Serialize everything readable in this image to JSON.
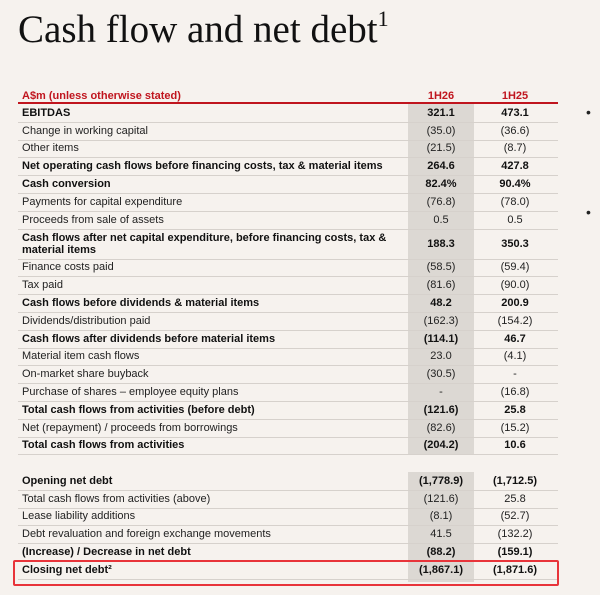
{
  "header": {
    "title": "Cash flow and net debt",
    "title_superscript": "1"
  },
  "table": {
    "columns": [
      "A$m (unless otherwise stated)",
      "1H26",
      "1H25"
    ],
    "sections": [
      {
        "rows": [
          {
            "label": "EBITDAS",
            "values": [
              "321.1",
              "473.1"
            ],
            "bold": true
          },
          {
            "label": "Change in working capital",
            "values": [
              "(35.0)",
              "(36.6)"
            ]
          },
          {
            "label": "Other items",
            "values": [
              "(21.5)",
              "(8.7)"
            ]
          },
          {
            "label": "Net operating cash flows before financing costs, tax & material items",
            "values": [
              "264.6",
              "427.8"
            ],
            "bold": true
          },
          {
            "label": "Cash conversion",
            "values": [
              "82.4%",
              "90.4%"
            ],
            "bold": true
          },
          {
            "label": "Payments for capital expenditure",
            "values": [
              "(76.8)",
              "(78.0)"
            ]
          },
          {
            "label": "Proceeds from sale of assets",
            "values": [
              "0.5",
              "0.5"
            ]
          },
          {
            "label": "Cash flows after net capital expenditure, before financing costs, tax & material items",
            "values": [
              "188.3",
              "350.3"
            ],
            "bold": true
          },
          {
            "label": "Finance costs paid",
            "values": [
              "(58.5)",
              "(59.4)"
            ]
          },
          {
            "label": "Tax paid",
            "values": [
              "(81.6)",
              "(90.0)"
            ]
          },
          {
            "label": "Cash flows before dividends & material items",
            "values": [
              "48.2",
              "200.9"
            ],
            "bold": true
          },
          {
            "label": "Dividends/distribution paid",
            "values": [
              "(162.3)",
              "(154.2)"
            ]
          },
          {
            "label": "Cash flows after dividends before material items",
            "values": [
              "(114.1)",
              "46.7"
            ],
            "bold": true
          },
          {
            "label": "Material item cash flows",
            "values": [
              "23.0",
              "(4.1)"
            ]
          },
          {
            "label": "On-market share buyback",
            "values": [
              "(30.5)",
              "-"
            ]
          },
          {
            "label": "Purchase of shares – employee equity plans",
            "values": [
              "-",
              "(16.8)"
            ]
          },
          {
            "label": "Total cash flows from activities (before debt)",
            "values": [
              "(121.6)",
              "25.8"
            ],
            "bold": true
          },
          {
            "label": "Net (repayment) / proceeds from borrowings",
            "values": [
              "(82.6)",
              "(15.2)"
            ]
          },
          {
            "label": "Total cash flows from activities",
            "values": [
              "(204.2)",
              "10.6"
            ],
            "bold": true
          }
        ]
      },
      {
        "rows": [
          {
            "label": "Opening net debt",
            "values": [
              "(1,778.9)",
              "(1,712.5)"
            ],
            "bold": true
          },
          {
            "label": "Total cash flows from activities (above)",
            "values": [
              "(121.6)",
              "25.8"
            ]
          },
          {
            "label": "Lease liability additions",
            "values": [
              "(8.1)",
              "(52.7)"
            ]
          },
          {
            "label": "Debt revaluation and foreign exchange movements",
            "values": [
              "41.5",
              "(132.2)"
            ]
          },
          {
            "label": "(Increase) / Decrease in net debt",
            "values": [
              "(88.2)",
              "(159.1)"
            ],
            "bold": true
          },
          {
            "label": "Closing net debt²",
            "values": [
              "(1,867.1)",
              "(1,871.6)"
            ],
            "bold": true
          }
        ]
      }
    ]
  }
}
